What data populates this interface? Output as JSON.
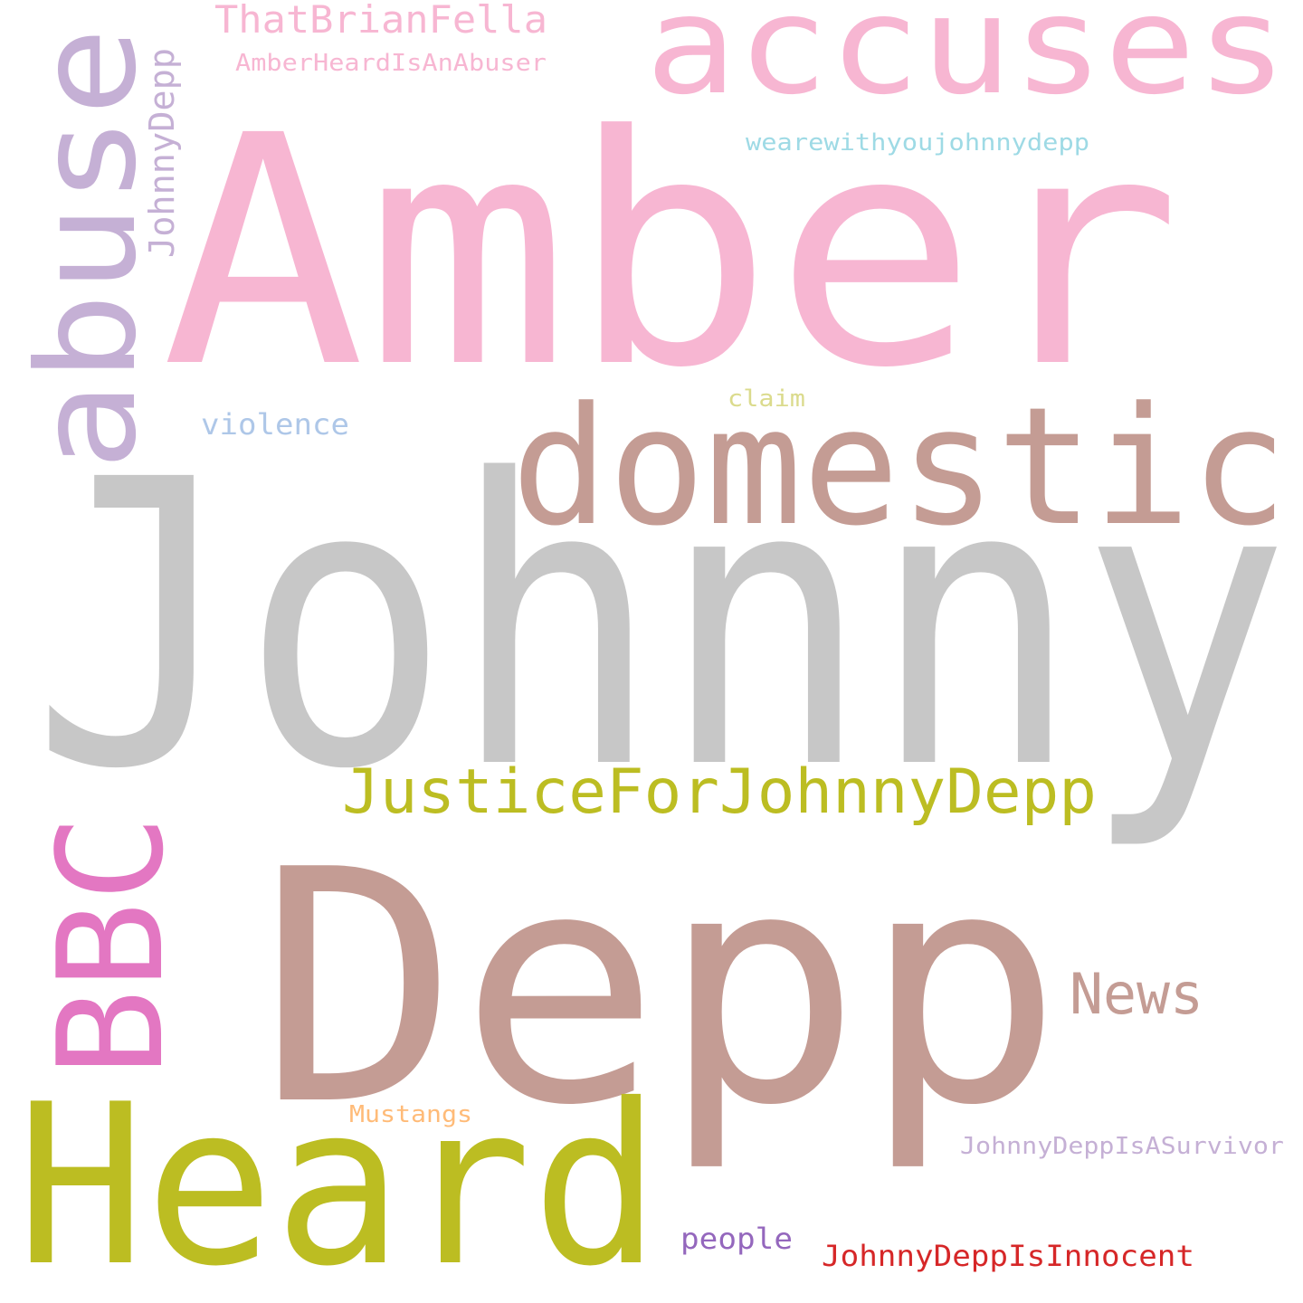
{
  "words": [
    {
      "id": "johnny",
      "text": "Johnny",
      "color": "#c7c7c7"
    },
    {
      "id": "amber",
      "text": "Amber",
      "color": "#f7b6d2"
    },
    {
      "id": "depp",
      "text": "Depp",
      "color": "#c49c94"
    },
    {
      "id": "heard",
      "text": "Heard",
      "color": "#bcbd22"
    },
    {
      "id": "domestic",
      "text": "domestic",
      "color": "#c49c94"
    },
    {
      "id": "accuses",
      "text": "accuses",
      "color": "#f7b6d2"
    },
    {
      "id": "abuse",
      "text": "abuse",
      "color": "#c5b0d5"
    },
    {
      "id": "bbc",
      "text": "BBC",
      "color": "#e377c2"
    },
    {
      "id": "justice-for-johnny-depp",
      "text": "JusticeForJohnnyDepp",
      "color": "#bcbd22"
    },
    {
      "id": "news",
      "text": "News",
      "color": "#c49c94"
    },
    {
      "id": "that-brian-fella",
      "text": "ThatBrianFella",
      "color": "#f7b6d2"
    },
    {
      "id": "amber-heard-is-an-abuser",
      "text": "AmberHeardIsAnAbuser",
      "color": "#f7b6d2"
    },
    {
      "id": "johnnydepp-vertical",
      "text": "JohnnyDepp",
      "color": "#c5b0d5"
    },
    {
      "id": "wearewithyoujohnnydepp",
      "text": "wearewithyoujohnnydepp",
      "color": "#9edae5"
    },
    {
      "id": "violence",
      "text": "violence",
      "color": "#aec7e8"
    },
    {
      "id": "claim",
      "text": "claim",
      "color": "#dbdb8d"
    },
    {
      "id": "mustangs",
      "text": "Mustangs",
      "color": "#ffbb78"
    },
    {
      "id": "johnny-depp-is-a-survivor",
      "text": "JohnnyDeppIsASurvivor",
      "color": "#c5b0d5"
    },
    {
      "id": "people",
      "text": "people",
      "color": "#9467bd"
    },
    {
      "id": "johnny-depp-is-innocent",
      "text": "JohnnyDeppIsInnocent",
      "color": "#d62728"
    }
  ]
}
